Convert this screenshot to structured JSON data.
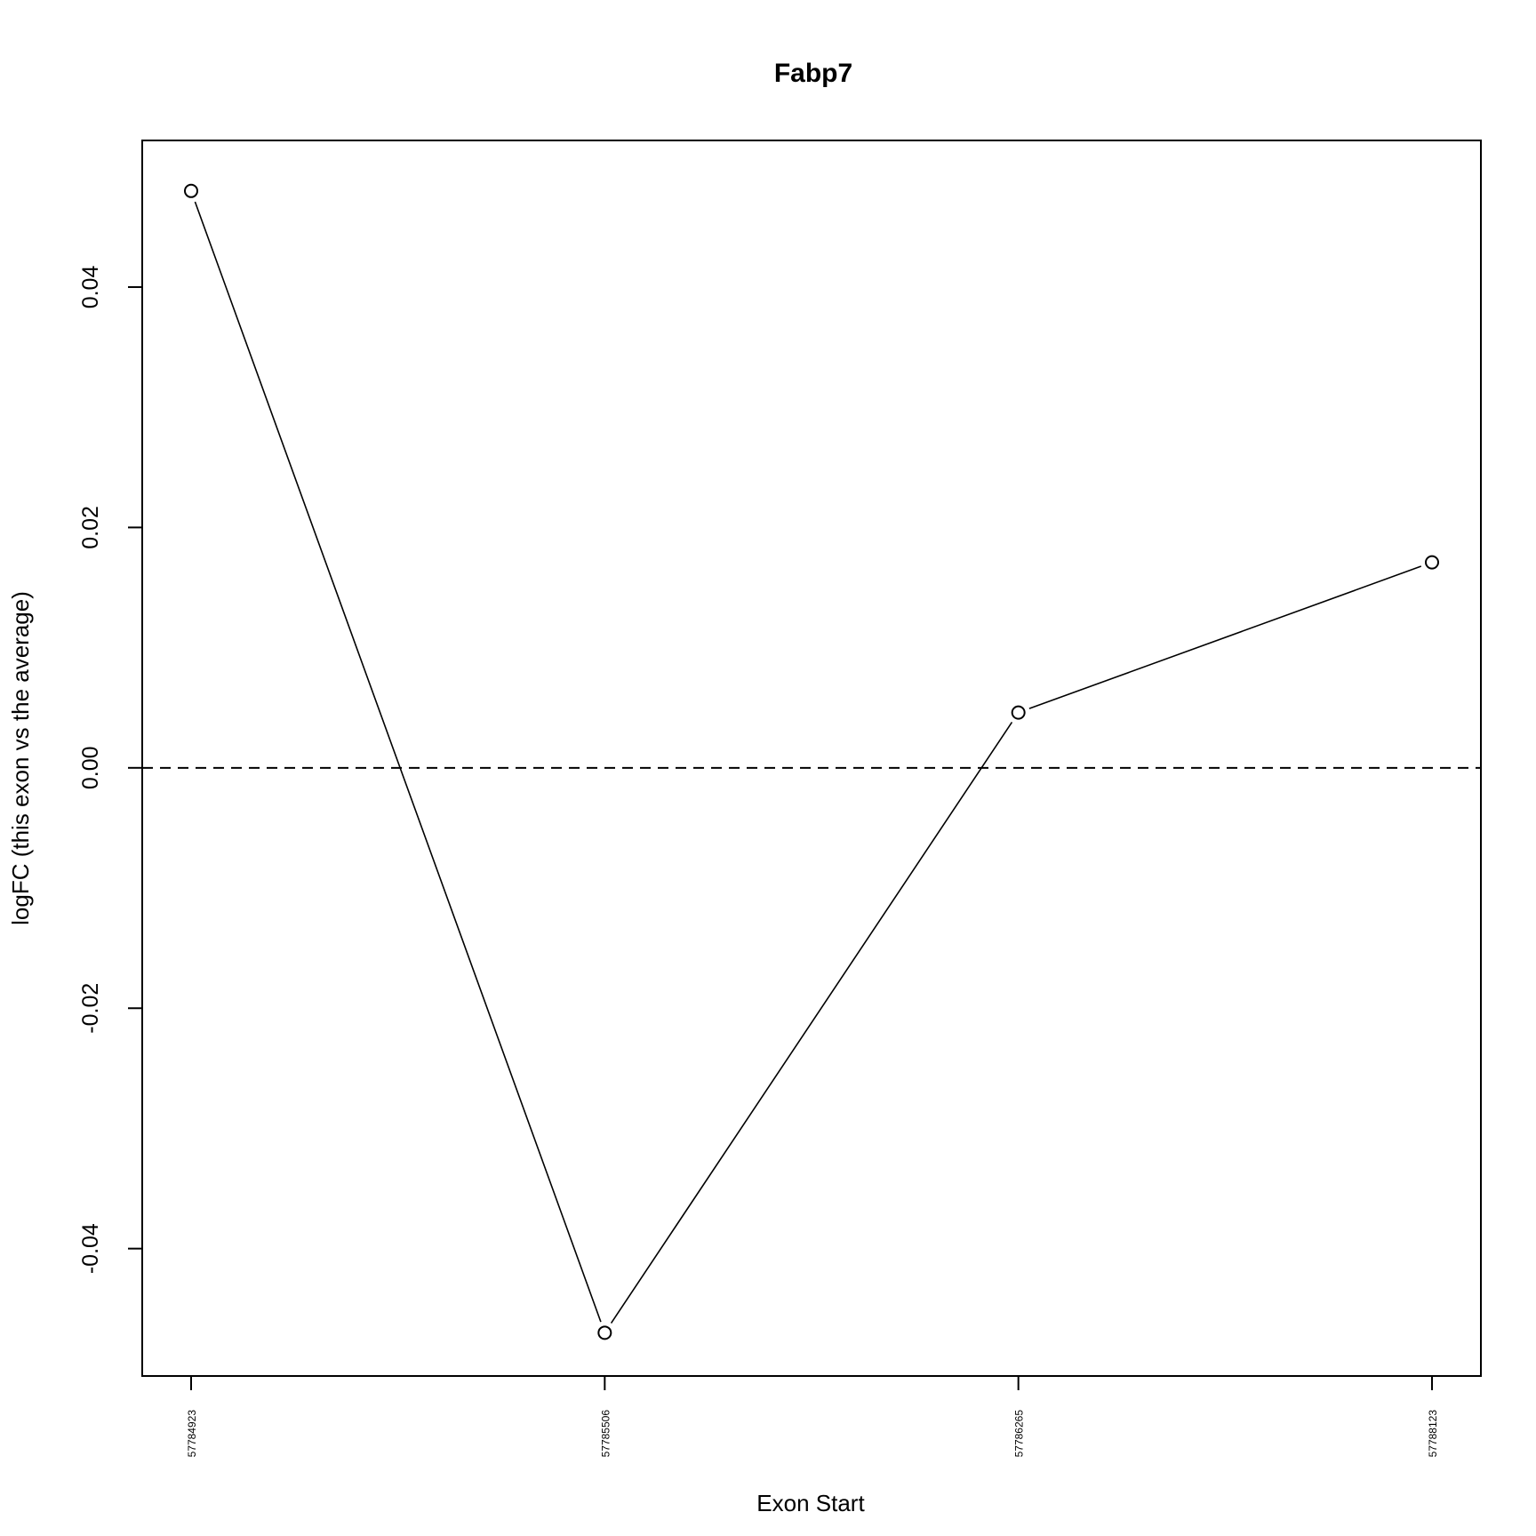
{
  "chart_data": {
    "type": "line",
    "title": "Fabp7",
    "xlabel": "Exon Start",
    "ylabel": "logFC (this exon vs the average)",
    "categories": [
      "57784923",
      "57785506",
      "57786265",
      "57788123"
    ],
    "series": [
      {
        "values": [
          0.048,
          -0.047,
          0.0046,
          0.0171
        ]
      }
    ],
    "ylim": [
      -0.0506,
      0.0522
    ],
    "yticks": [
      "-0.04",
      "-0.02",
      "0.00",
      "0.02",
      "0.04"
    ],
    "reference_line": {
      "y": 0,
      "style": "dashed"
    },
    "grid": false,
    "legend": "none",
    "colors": {
      "line": "#000000",
      "marker_fill": "#ffffff",
      "axis": "#000000"
    }
  }
}
